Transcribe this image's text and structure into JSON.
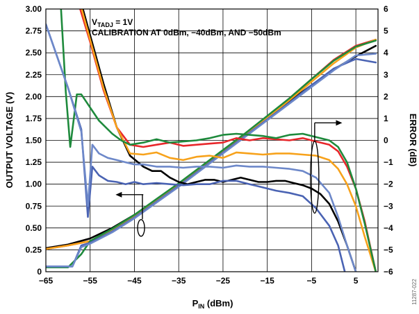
{
  "chart_data": {
    "type": "line",
    "title": "",
    "annotation_lines": [
      {
        "main": "V",
        "sub": "TADJ",
        "rest": " = 1V"
      },
      {
        "main": "CALIBRATION AT 0dBm, −40dBm, AND −50dBm",
        "sub": "",
        "rest": ""
      }
    ],
    "xlabel": {
      "main": "P",
      "sub": "IN",
      "rest": " (dBm)"
    },
    "ylabel_left": "OUTPUT VOLTAGE (V)",
    "ylabel_right": "ERROR (dB)",
    "xlim": [
      -65,
      10
    ],
    "ylim_left": [
      0,
      3
    ],
    "ylim_right": [
      -6,
      6
    ],
    "x_ticks": [
      -65,
      -55,
      -45,
      -35,
      -25,
      -15,
      -5,
      5
    ],
    "x_tick_labels": [
      "−65",
      "−55",
      "−45",
      "−35",
      "−25",
      "−15",
      "−5",
      "5"
    ],
    "y_left_ticks": [
      0,
      0.25,
      0.5,
      0.75,
      1.0,
      1.25,
      1.5,
      1.75,
      2.0,
      2.25,
      2.5,
      2.75,
      3.0
    ],
    "y_left_tick_labels": [
      "0",
      "0.25",
      "0.50",
      "0.75",
      "1.00",
      "1.25",
      "1.50",
      "1.75",
      "2.00",
      "2.25",
      "2.50",
      "2.75",
      "3.00"
    ],
    "y_right_ticks": [
      -6,
      -5,
      -4,
      -3,
      -2,
      -1,
      0,
      1,
      2,
      3,
      4,
      5,
      6
    ],
    "y_right_tick_labels": [
      "−6",
      "−5",
      "−4",
      "−3",
      "−2",
      "−1",
      "0",
      "1",
      "2",
      "3",
      "4",
      "5",
      "6"
    ],
    "grid": true,
    "figure_id": "11287-022",
    "colors": {
      "black": "#000000",
      "red": "#e8272b",
      "orange": "#f7a21b",
      "green": "#1e8a3c",
      "blue": "#4a63b3",
      "blue_light": "#6d88c9",
      "grid": "#000000"
    },
    "voltage_series": [
      {
        "color": "black",
        "axis": "left",
        "x": [
          -65,
          -60,
          -55,
          -50,
          -45,
          -40,
          -35,
          -30,
          -25,
          -20,
          -15,
          -10,
          -5,
          0,
          5,
          9.5
        ],
        "y": [
          0.27,
          0.31,
          0.38,
          0.5,
          0.65,
          0.82,
          1.0,
          1.19,
          1.38,
          1.57,
          1.76,
          1.95,
          2.13,
          2.31,
          2.46,
          2.58
        ]
      },
      {
        "color": "red",
        "axis": "left",
        "x": [
          -65,
          -60,
          -55,
          -50,
          -45,
          -40,
          -35,
          -30,
          -25,
          -20,
          -15,
          -10,
          -5,
          0,
          5,
          9.5
        ],
        "y": [
          0.26,
          0.3,
          0.35,
          0.47,
          0.63,
          0.81,
          0.99,
          1.18,
          1.37,
          1.57,
          1.77,
          1.98,
          2.2,
          2.42,
          2.58,
          2.65
        ]
      },
      {
        "color": "orange",
        "axis": "left",
        "x": [
          -65,
          -60,
          -55,
          -50,
          -45,
          -40,
          -35,
          -30,
          -25,
          -20,
          -15,
          -10,
          -5,
          0,
          5,
          9.5
        ],
        "y": [
          0.26,
          0.3,
          0.35,
          0.47,
          0.63,
          0.81,
          0.99,
          1.18,
          1.37,
          1.56,
          1.76,
          1.96,
          2.17,
          2.38,
          2.56,
          2.65
        ]
      },
      {
        "color": "green",
        "axis": "left",
        "x": [
          -65,
          -60,
          -57,
          -55,
          -50,
          -45,
          -40,
          -35,
          -30,
          -25,
          -20,
          -15,
          -10,
          -5,
          0,
          5,
          9.5
        ],
        "y": [
          0.05,
          0.05,
          0.2,
          0.35,
          0.49,
          0.65,
          0.83,
          1.01,
          1.2,
          1.39,
          1.58,
          1.78,
          1.98,
          2.2,
          2.41,
          2.57,
          2.64
        ]
      },
      {
        "color": "blue",
        "axis": "left",
        "x": [
          -65,
          -59,
          -57,
          -55,
          -50,
          -45,
          -40,
          -35,
          -30,
          -25,
          -20,
          -15,
          -10,
          -5,
          0,
          5,
          9.5
        ],
        "y": [
          0.06,
          0.06,
          0.3,
          0.33,
          0.46,
          0.62,
          0.8,
          0.98,
          1.17,
          1.36,
          1.55,
          1.74,
          1.93,
          2.13,
          2.32,
          2.43,
          2.39
        ]
      },
      {
        "color": "blue_light",
        "axis": "left",
        "x": [
          -65,
          -59,
          -57,
          -55,
          -50,
          -45,
          -40,
          -35,
          -30,
          -25,
          -20,
          -15,
          -10,
          -5,
          0,
          5,
          9.5
        ],
        "y": [
          0.06,
          0.06,
          0.28,
          0.32,
          0.45,
          0.61,
          0.79,
          0.97,
          1.16,
          1.35,
          1.54,
          1.73,
          1.92,
          2.11,
          2.3,
          2.47,
          2.49
        ]
      }
    ],
    "error_series": [
      {
        "color": "black",
        "axis": "right",
        "x": [
          -65,
          -61,
          -58,
          -55,
          -52,
          -49,
          -46,
          -43,
          -41,
          -39,
          -37,
          -35,
          -33,
          -31,
          -29,
          -27,
          -25,
          -23,
          -21,
          -19,
          -17,
          -15,
          -13,
          -11,
          -9,
          -7,
          -5,
          -3,
          -1,
          1,
          3,
          5
        ],
        "y": [
          7.5,
          7.5,
          7.0,
          4.8,
          2.6,
          0.6,
          -0.7,
          -1.2,
          -1.4,
          -1.4,
          -1.7,
          -1.9,
          -2.0,
          -1.9,
          -1.8,
          -1.8,
          -1.9,
          -1.8,
          -1.7,
          -1.8,
          -1.9,
          -1.9,
          -1.85,
          -1.85,
          -1.95,
          -2.05,
          -2.2,
          -2.45,
          -2.9,
          -3.7,
          -4.8,
          -6.0
        ]
      },
      {
        "color": "red",
        "axis": "right",
        "x": [
          -65,
          -61,
          -58,
          -55,
          -52,
          -49,
          -46,
          -43,
          -40,
          -37,
          -34,
          -31,
          -28,
          -25,
          -22,
          -19,
          -16,
          -13,
          -10,
          -7,
          -4,
          -1,
          1,
          3,
          5,
          7,
          9.5
        ],
        "y": [
          7.5,
          7.5,
          6.5,
          4.5,
          2.3,
          0.6,
          -0.2,
          -0.3,
          -0.2,
          -0.1,
          -0.25,
          -0.2,
          -0.15,
          -0.1,
          0.1,
          0.0,
          0.1,
          0.05,
          0.0,
          0.1,
          -0.05,
          -0.2,
          -0.5,
          -1.2,
          -2.2,
          -3.7,
          -6.0
        ]
      },
      {
        "color": "orange",
        "axis": "right",
        "x": [
          -65,
          -61,
          -58,
          -55,
          -52,
          -49,
          -46,
          -43,
          -40,
          -37,
          -34,
          -31,
          -28,
          -25,
          -22,
          -19,
          -16,
          -13,
          -10,
          -7,
          -4,
          -1,
          1,
          3,
          5,
          7,
          9.5
        ],
        "y": [
          7.5,
          7.5,
          6.8,
          4.6,
          2.4,
          0.6,
          -0.6,
          -0.65,
          -0.55,
          -0.8,
          -0.9,
          -0.75,
          -0.7,
          -0.8,
          -0.55,
          -0.6,
          -0.65,
          -0.6,
          -0.6,
          -0.65,
          -0.7,
          -0.9,
          -1.3,
          -2.0,
          -3.0,
          -4.4,
          -6.0
        ]
      },
      {
        "color": "green",
        "axis": "right",
        "x": [
          -65,
          -62,
          -60.5,
          -59.5,
          -58,
          -57,
          -56,
          -55,
          -53,
          -50,
          -48,
          -46,
          -43,
          -40,
          -37,
          -34,
          -31,
          -28,
          -25,
          -22,
          -19,
          -16,
          -13,
          -10,
          -7,
          -4,
          -1,
          1,
          3,
          5,
          7,
          9.5
        ],
        "y": [
          7.5,
          7.5,
          2.2,
          -0.3,
          2.1,
          2.1,
          1.8,
          1.5,
          0.9,
          0.3,
          0.0,
          -0.2,
          -0.1,
          0.05,
          -0.1,
          -0.05,
          0.0,
          0.1,
          0.25,
          0.3,
          0.25,
          0.2,
          0.1,
          0.25,
          0.3,
          0.15,
          0.0,
          -0.3,
          -1.0,
          -2.2,
          -3.8,
          -6.0
        ]
      },
      {
        "color": "blue",
        "axis": "right",
        "x": [
          -65,
          -60,
          -57,
          -55.5,
          -54.5,
          -53,
          -51,
          -49,
          -47,
          -45,
          -43,
          -40,
          -37,
          -34,
          -31,
          -28,
          -25,
          -22,
          -19,
          -16,
          -13,
          -10,
          -7,
          -4,
          -1,
          1,
          2.5
        ],
        "y": [
          5.3,
          2.4,
          0.5,
          -3.5,
          -1.2,
          -1.6,
          -1.85,
          -1.9,
          -2.0,
          -1.9,
          -2.0,
          -1.95,
          -2.0,
          -2.05,
          -2.0,
          -2.0,
          -1.85,
          -1.85,
          -2.0,
          -2.15,
          -2.3,
          -2.4,
          -2.55,
          -3.1,
          -3.9,
          -4.8,
          -6.0
        ]
      },
      {
        "color": "blue_light",
        "axis": "right",
        "x": [
          -65,
          -60,
          -57,
          -55.5,
          -54.5,
          -53,
          -51,
          -49,
          -47,
          -45,
          -43,
          -40,
          -37,
          -34,
          -31,
          -28,
          -25,
          -22,
          -19,
          -16,
          -13,
          -10,
          -7,
          -4,
          -1,
          1,
          3,
          5
        ],
        "y": [
          5.3,
          2.4,
          0.4,
          -3.0,
          -0.2,
          -0.6,
          -0.8,
          -0.9,
          -1.0,
          -1.1,
          -1.1,
          -1.2,
          -1.2,
          -1.25,
          -1.2,
          -1.2,
          -1.25,
          -1.15,
          -1.2,
          -1.2,
          -1.25,
          -1.3,
          -1.4,
          -1.7,
          -2.4,
          -3.5,
          -4.8,
          -6.0
        ]
      }
    ]
  }
}
